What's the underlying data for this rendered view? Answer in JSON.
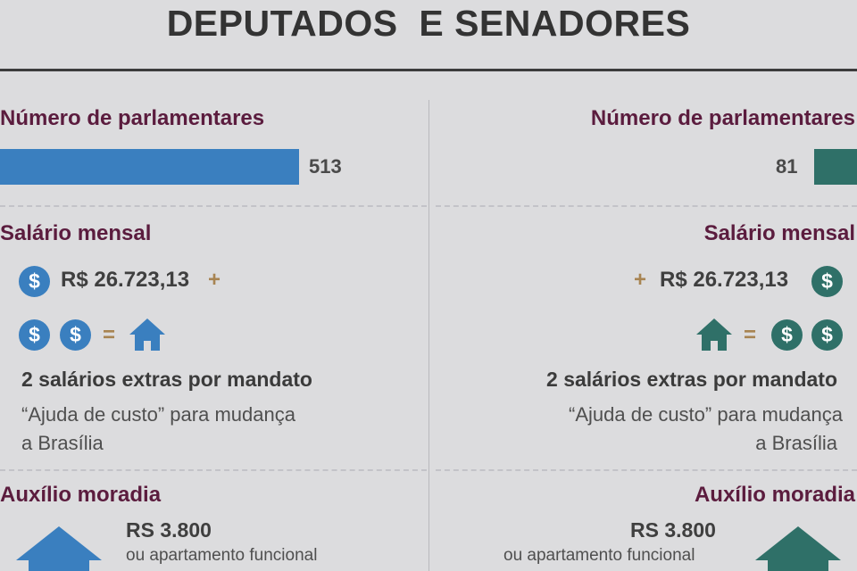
{
  "title": "DEPUTADOS  E SENADORES",
  "colors": {
    "deputados": "#3a7fbf",
    "senadores": "#2f7068",
    "heading": "#5b1c3e",
    "plus": "#a88452"
  },
  "deputados": {
    "count_label": "Número de parlamentares",
    "count": "513",
    "salary_label": "Salário mensal",
    "salary": "R$ 26.723,13",
    "plus": "+",
    "coin": "$",
    "equals": "=",
    "extras": "2 salários extras por mandato",
    "extras_note_1": "“Ajuda de custo” para mudança",
    "extras_note_2": "a Brasília",
    "housing_label": "Auxílio moradia",
    "housing_amount": "RS 3.800",
    "housing_note": "ou apartamento funcional"
  },
  "senadores": {
    "count_label": "Número de parlamentares",
    "count": "81",
    "salary_label": "Salário mensal",
    "salary": "R$ 26.723,13",
    "plus": "+",
    "coin": "$",
    "equals": "=",
    "extras": "2 salários extras por mandato",
    "extras_note_1": "“Ajuda de custo” para mudança",
    "extras_note_2": "a Brasília",
    "housing_label": "Auxílio moradia",
    "housing_amount": "RS 3.800",
    "housing_note": "ou apartamento funcional"
  }
}
